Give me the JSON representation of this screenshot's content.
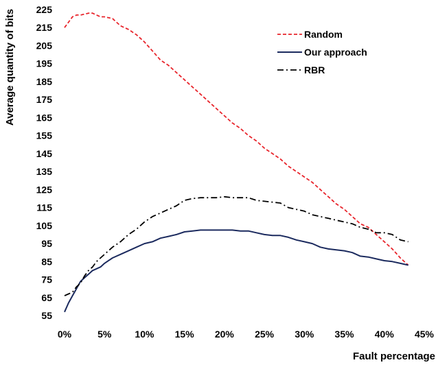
{
  "chart_data": {
    "type": "line",
    "title": "",
    "xlabel": "Fault percentage",
    "ylabel": "Average quantity of bits",
    "xlim": [
      0,
      45
    ],
    "ylim": [
      55,
      225
    ],
    "x_ticks": [
      0,
      5,
      10,
      15,
      20,
      25,
      30,
      35,
      40,
      45
    ],
    "x_tick_labels": [
      "0%",
      "5%",
      "10%",
      "15%",
      "20%",
      "25%",
      "30%",
      "35%",
      "40%",
      "45%"
    ],
    "y_ticks": [
      55,
      65,
      75,
      85,
      95,
      105,
      115,
      125,
      135,
      145,
      155,
      165,
      175,
      185,
      195,
      205,
      215,
      225
    ],
    "y_tick_labels": [
      "55",
      "65",
      "75",
      "85",
      "95",
      "105",
      "115",
      "125",
      "135",
      "145",
      "155",
      "165",
      "175",
      "185",
      "195",
      "205",
      "215",
      "225"
    ],
    "grid": false,
    "legend_position": "top-right",
    "series": [
      {
        "name": "Random",
        "color": "#e8242b",
        "dash": "dashed",
        "x": [
          0,
          0.5,
          1,
          1.5,
          2,
          2.5,
          3,
          3.5,
          4,
          4.5,
          5,
          6,
          7,
          8,
          9,
          10,
          11,
          12,
          13,
          14,
          15,
          16,
          17,
          18,
          19,
          20,
          21,
          22,
          23,
          24,
          25,
          26,
          27,
          28,
          29,
          30,
          31,
          32,
          33,
          34,
          35,
          36,
          37,
          38,
          39,
          40,
          41,
          42,
          43
        ],
        "values": [
          215,
          218,
          221,
          222,
          222,
          222.5,
          223,
          223,
          222,
          221,
          221,
          220,
          216,
          214,
          211,
          207,
          202,
          197,
          194,
          190,
          186,
          182,
          178,
          174,
          170,
          166,
          162,
          159,
          155,
          152,
          148,
          145,
          142,
          138,
          135,
          132,
          129,
          125,
          121,
          117,
          114,
          110,
          106,
          104,
          100,
          96,
          92,
          87,
          83
        ]
      },
      {
        "name": "Our approach",
        "color": "#1b2a5e",
        "dash": "solid",
        "x": [
          0,
          0.5,
          1,
          1.5,
          2,
          2.5,
          3,
          3.5,
          4,
          4.5,
          5,
          6,
          7,
          8,
          9,
          10,
          11,
          12,
          13,
          14,
          15,
          16,
          17,
          18,
          19,
          20,
          21,
          22,
          23,
          24,
          25,
          26,
          27,
          28,
          29,
          30,
          31,
          32,
          33,
          34,
          35,
          36,
          37,
          38,
          39,
          40,
          41,
          42,
          43
        ],
        "values": [
          57,
          62,
          66,
          70,
          74,
          76,
          78,
          80,
          81,
          82,
          84,
          87,
          89,
          91,
          93,
          95,
          96,
          98,
          99,
          100,
          101.5,
          102,
          102.5,
          102.5,
          102.5,
          102.5,
          102.5,
          102,
          102,
          101,
          100,
          99.5,
          99.5,
          98.5,
          97,
          96,
          95,
          93,
          92,
          91.5,
          91,
          90,
          88,
          87.5,
          86.5,
          85.5,
          85,
          84,
          83
        ]
      },
      {
        "name": "RBR",
        "color": "#000000",
        "dash": "dashdot",
        "x": [
          0,
          0.5,
          1,
          1.5,
          2,
          2.5,
          3,
          3.5,
          4,
          4.5,
          5,
          6,
          7,
          8,
          9,
          10,
          11,
          12,
          13,
          14,
          15,
          16,
          17,
          18,
          19,
          20,
          21,
          22,
          23,
          24,
          25,
          26,
          27,
          28,
          29,
          30,
          31,
          32,
          33,
          34,
          35,
          36,
          37,
          38,
          39,
          40,
          41,
          42,
          43
        ],
        "values": [
          66,
          67,
          68,
          71,
          73,
          77,
          80,
          82,
          85,
          87,
          89,
          93,
          96,
          100,
          103,
          107,
          110,
          112,
          114,
          116,
          119,
          120,
          120.5,
          120.5,
          120.5,
          121,
          120.5,
          120.5,
          120.5,
          119,
          118.5,
          118,
          117.5,
          115,
          114,
          113,
          111,
          110,
          109,
          108,
          107,
          106,
          104,
          103,
          101,
          101,
          100,
          97,
          96
        ]
      }
    ]
  }
}
